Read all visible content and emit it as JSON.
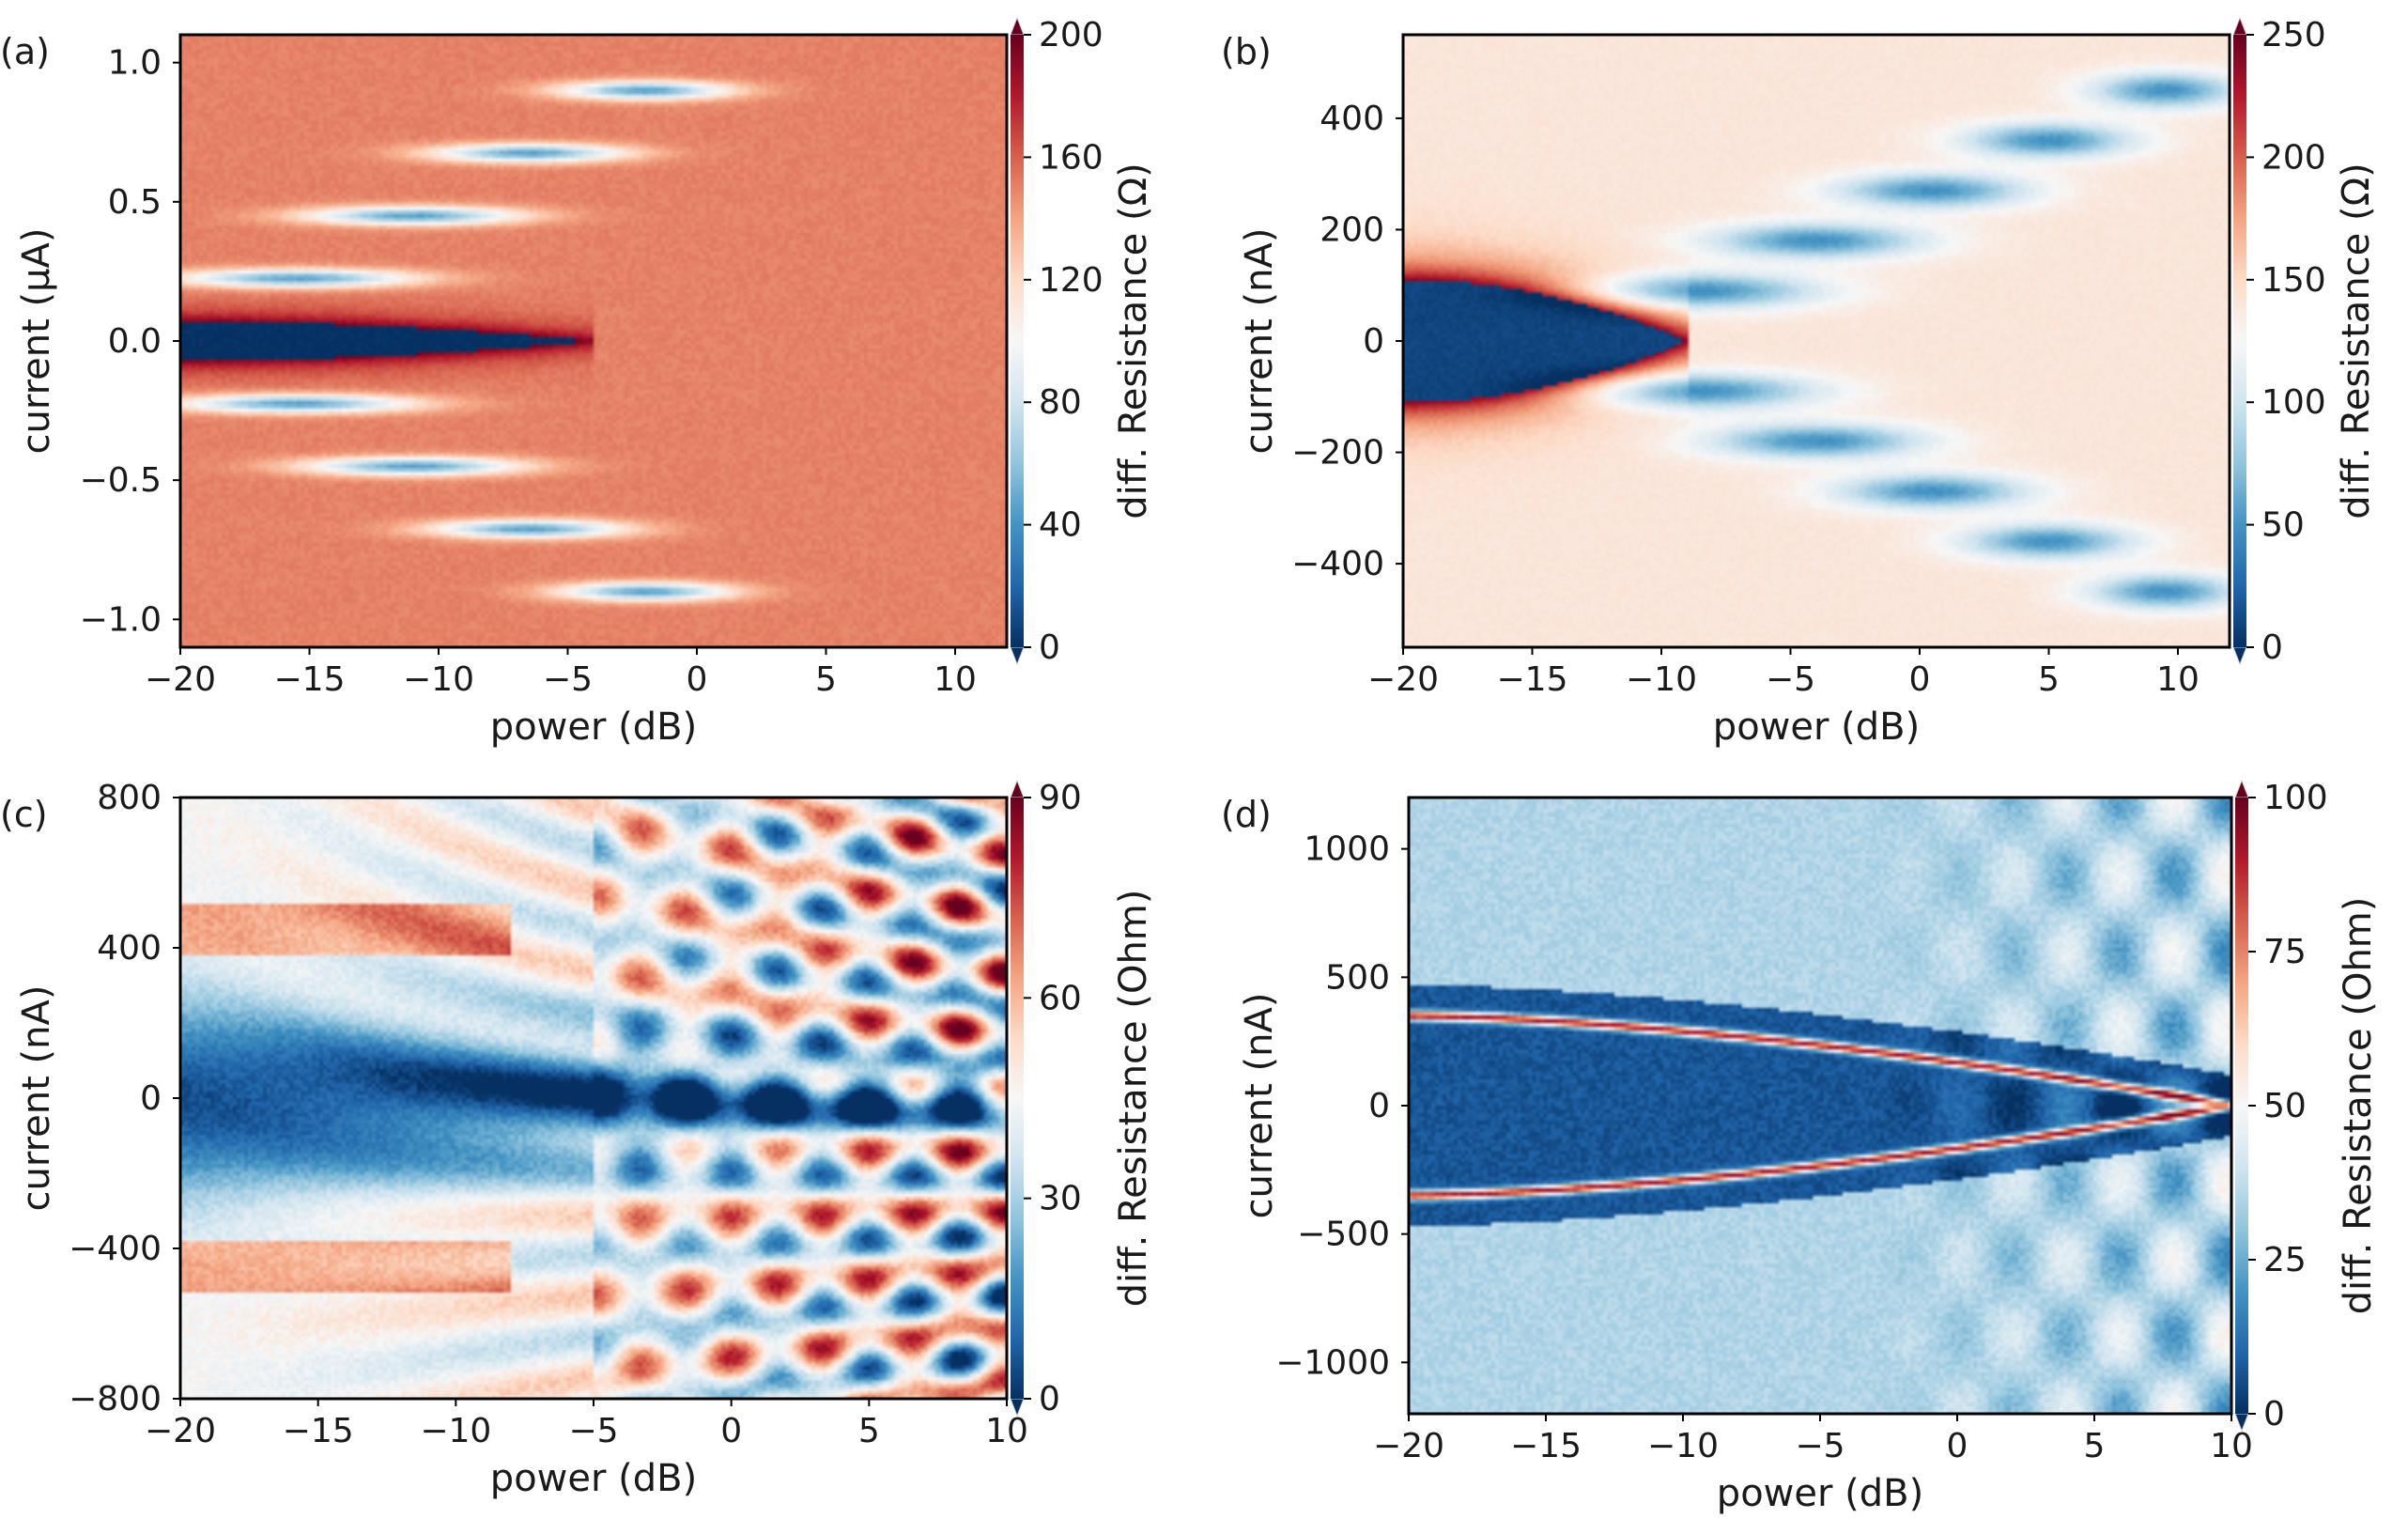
{
  "colormap": {
    "name": "RdBu_r",
    "stops": [
      "#053061",
      "#2166ac",
      "#4393c3",
      "#92c5de",
      "#d1e5f0",
      "#f7f7f7",
      "#fddbc7",
      "#f4a582",
      "#d6604d",
      "#b2182b",
      "#67001f"
    ]
  },
  "chart_data": [
    {
      "type": "heatmap",
      "panel_label": "(a)",
      "xlabel": "power (dB)",
      "ylabel": "current (μA)",
      "xlim": [
        -20,
        12
      ],
      "ylim": [
        -1.1,
        1.1
      ],
      "xticks": [
        -20,
        -15,
        -10,
        -5,
        0,
        5,
        10
      ],
      "xtick_labels": [
        "−20",
        "−15",
        "−10",
        "−5",
        "0",
        "5",
        "10"
      ],
      "yticks": [
        -1.0,
        -0.5,
        0.0,
        0.5,
        1.0
      ],
      "ytick_labels": [
        "−1.0",
        "−0.5",
        "0.0",
        "0.5",
        "1.0"
      ],
      "colorbar": {
        "label": "diff. Resistance (Ω)",
        "min": 0,
        "max": 200,
        "ticks": [
          0,
          40,
          80,
          120,
          160,
          200
        ],
        "tick_labels": [
          "0",
          "40",
          "80",
          "120",
          "160",
          "200"
        ]
      },
      "pattern": {
        "kind": "shapiro",
        "seed": 1,
        "background": 150,
        "dip_value": 0,
        "peak_value": 200,
        "zero_halfwidth": 0.07,
        "step": 0.225,
        "levels": 4,
        "start_power": -20,
        "spread": 1.0,
        "onset": -12,
        "width_y": 0.04
      }
    },
    {
      "type": "heatmap",
      "panel_label": "(b)",
      "xlabel": "power (dB)",
      "ylabel": "current (nA)",
      "xlim": [
        -20,
        12
      ],
      "ylim": [
        -550,
        550
      ],
      "xticks": [
        -20,
        -15,
        -10,
        -5,
        0,
        5,
        10
      ],
      "xtick_labels": [
        "−20",
        "−15",
        "−10",
        "−5",
        "0",
        "5",
        "10"
      ],
      "yticks": [
        -400,
        -200,
        0,
        200,
        400
      ],
      "ytick_labels": [
        "−400",
        "−200",
        "0",
        "200",
        "400"
      ],
      "colorbar": {
        "label": "diff. Resistance (Ω)",
        "min": 0,
        "max": 250,
        "ticks": [
          0,
          50,
          100,
          150,
          200,
          250
        ],
        "tick_labels": [
          "0",
          "50",
          "100",
          "150",
          "200",
          "250"
        ]
      },
      "pattern": {
        "kind": "shapiro",
        "seed": 2,
        "background": 140,
        "dip_value": 10,
        "peak_value": 250,
        "zero_halfwidth": 110,
        "step": 90,
        "levels": 5,
        "start_power": -13,
        "spread": 1.0,
        "onset": -17,
        "width_y": 40
      }
    },
    {
      "type": "heatmap",
      "panel_label": "(c)",
      "xlabel": "power (dB)",
      "ylabel": "current (nA)",
      "xlim": [
        -20,
        10
      ],
      "ylim": [
        -800,
        800
      ],
      "xticks": [
        -20,
        -15,
        -10,
        -5,
        0,
        5,
        10
      ],
      "xtick_labels": [
        "−20",
        "−15",
        "−10",
        "−5",
        "0",
        "5",
        "10"
      ],
      "yticks": [
        -800,
        -400,
        0,
        400,
        800
      ],
      "ytick_labels": [
        "−800",
        "−400",
        "0",
        "400",
        "800"
      ],
      "colorbar": {
        "label": "diff. Resistance (Ohm)",
        "min": 0,
        "max": 90,
        "ticks": [
          0,
          30,
          60,
          90
        ],
        "tick_labels": [
          "0",
          "30",
          "60",
          "90"
        ]
      },
      "pattern": {
        "kind": "fringes",
        "seed": 3,
        "background": 40,
        "dip_value": 0,
        "peak_value": 90,
        "zero_halfwidth": 230,
        "step": 70,
        "levels": 10,
        "start_power": -10,
        "spread": 1.0,
        "onset": -6,
        "width_y": 25
      }
    },
    {
      "type": "heatmap",
      "panel_label": "(d)",
      "xlabel": "power (dB)",
      "ylabel": "current (nA)",
      "xlim": [
        -20,
        10
      ],
      "ylim": [
        -1200,
        1200
      ],
      "xticks": [
        -20,
        -15,
        -10,
        -5,
        0,
        5,
        10
      ],
      "xtick_labels": [
        "−20",
        "−15",
        "−10",
        "−5",
        "0",
        "5",
        "10"
      ],
      "yticks": [
        -1000,
        -500,
        0,
        500,
        1000
      ],
      "ytick_labels": [
        "−1000",
        "−500",
        "0",
        "500",
        "1000"
      ],
      "colorbar": {
        "label": "diff. Resistance (Ohm)",
        "min": 0,
        "max": 100,
        "ticks": [
          0,
          25,
          50,
          75,
          100
        ],
        "tick_labels": [
          "0",
          "25",
          "50",
          "75",
          "100"
        ]
      },
      "pattern": {
        "kind": "bands",
        "seed": 4,
        "background": 35,
        "dip_value": 2,
        "peak_value": 100,
        "zero_halfwidth": 350,
        "step": 130,
        "levels": 8,
        "start_power": -2,
        "spread": 1.0,
        "onset": 0,
        "width_y": 20
      }
    }
  ]
}
